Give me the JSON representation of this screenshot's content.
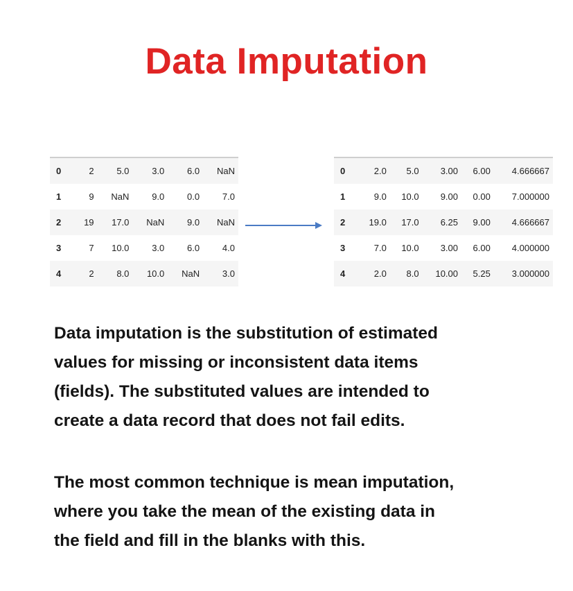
{
  "title": "Data Imputation",
  "colors": {
    "title": "#e02424",
    "arrow": "#4a7bc4",
    "row_shade": "#f5f5f5",
    "text": "#141414"
  },
  "table_before": {
    "rows": [
      [
        "0",
        "2",
        "5.0",
        "3.0",
        "6.0",
        "NaN"
      ],
      [
        "1",
        "9",
        "NaN",
        "9.0",
        "0.0",
        "7.0"
      ],
      [
        "2",
        "19",
        "17.0",
        "NaN",
        "9.0",
        "NaN"
      ],
      [
        "3",
        "7",
        "10.0",
        "3.0",
        "6.0",
        "4.0"
      ],
      [
        "4",
        "2",
        "8.0",
        "10.0",
        "NaN",
        "3.0"
      ]
    ]
  },
  "arrow_icon": "right-arrow-icon",
  "table_after": {
    "rows": [
      [
        "0",
        "2.0",
        "5.0",
        "3.00",
        "6.00",
        "4.666667"
      ],
      [
        "1",
        "9.0",
        "10.0",
        "9.00",
        "0.00",
        "7.000000"
      ],
      [
        "2",
        "19.0",
        "17.0",
        "6.25",
        "9.00",
        "4.666667"
      ],
      [
        "3",
        "7.0",
        "10.0",
        "3.00",
        "6.00",
        "4.000000"
      ],
      [
        "4",
        "2.0",
        "8.0",
        "10.00",
        "5.25",
        "3.000000"
      ]
    ]
  },
  "paragraph1": {
    "lines": [
      "Data imputation is the substitution of estimated",
      "values for missing or inconsistent data items",
      "(fields). The substituted values are intended to",
      "create a data record that does not fail edits."
    ]
  },
  "paragraph2": {
    "lines": [
      "The most common technique is mean imputation,",
      "where you take the mean of the existing data in",
      "the field and fill in the blanks with this."
    ]
  }
}
